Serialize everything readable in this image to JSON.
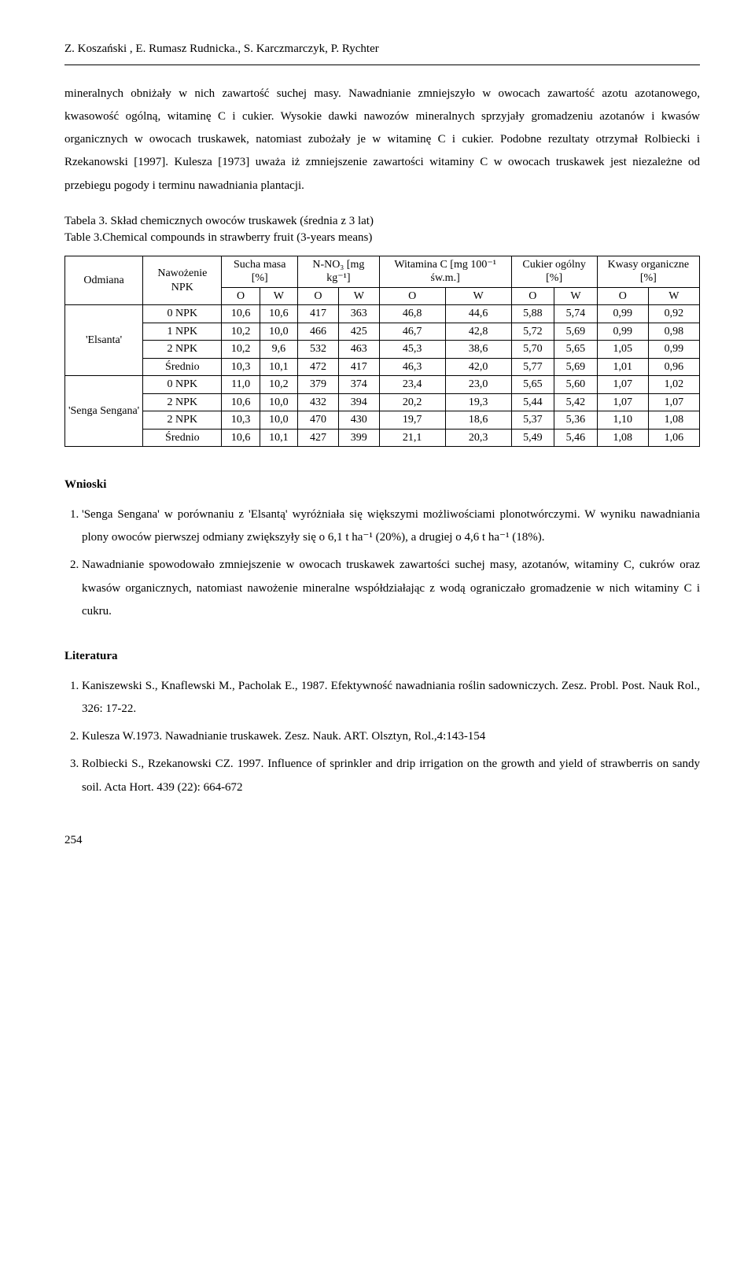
{
  "authors": "Z. Koszański , E. Rumasz Rudnicka., S.  Karczmarczyk, P. Rychter",
  "para1": "mineralnych obniżały w nich  zawartość suchej masy. Nawadnianie zmniejszyło w owocach zawartość azotu azotanowego, kwasowość ogólną, witaminę C i cukier. Wysokie dawki nawozów mineralnych sprzyjały gromadzeniu azotanów i kwasów organicznych w owocach truskawek, natomiast zubożały je  w witaminę C i cukier. Podobne rezultaty otrzymał Rolbiecki i Rzekanowski [1997]. Kulesza [1973] uważa iż zmniejszenie zawartości witaminy C w owocach truskawek jest niezależne od przebiegu pogody i terminu nawadniania plantacji.",
  "table_caption_pl": "Tabela 3. Skład chemicznych  owoców truskawek (średnia z 3 lat)",
  "table_caption_en": "Table 3.Chemical compounds in strawberry fruit (3-years means)",
  "table": {
    "col_headers_top": {
      "odmiana": "Odmiana",
      "nawozenie": "Nawożenie NPK",
      "sucha": "Sucha masa [%]",
      "nno3": "N-NO₃ [mg  kg⁻¹]",
      "witc": "Witamina C [mg 100⁻¹ św.m.]",
      "cukier": "Cukier ogólny [%]",
      "kwasy": "Kwasy organiczne [%]"
    },
    "sub_ow": [
      "O",
      "W",
      "O",
      "W",
      "O",
      "W",
      "O",
      "W",
      "O",
      "W"
    ],
    "groups": [
      {
        "name": "'Elsanta'",
        "rows": [
          {
            "label": "0 NPK",
            "vals": [
              "10,6",
              "10,6",
              "417",
              "363",
              "46,8",
              "44,6",
              "5,88",
              "5,74",
              "0,99",
              "0,92"
            ]
          },
          {
            "label": "1 NPK",
            "vals": [
              "10,2",
              "10,0",
              "466",
              "425",
              "46,7",
              "42,8",
              "5,72",
              "5,69",
              "0,99",
              "0,98"
            ]
          },
          {
            "label": "2 NPK",
            "vals": [
              "10,2",
              "9,6",
              "532",
              "463",
              "45,3",
              "38,6",
              "5,70",
              "5,65",
              "1,05",
              "0,99"
            ]
          },
          {
            "label": "Średnio",
            "vals": [
              "10,3",
              "10,1",
              "472",
              "417",
              "46,3",
              "42,0",
              "5,77",
              "5,69",
              "1,01",
              "0,96"
            ]
          }
        ]
      },
      {
        "name": "'Senga Sengana'",
        "rows": [
          {
            "label": "0 NPK",
            "vals": [
              "11,0",
              "10,2",
              "379",
              "374",
              "23,4",
              "23,0",
              "5,65",
              "5,60",
              "1,07",
              "1,02"
            ]
          },
          {
            "label": "2 NPK",
            "vals": [
              "10,6",
              "10,0",
              "432",
              "394",
              "20,2",
              "19,3",
              "5,44",
              "5,42",
              "1,07",
              "1,07"
            ]
          },
          {
            "label": "2 NPK",
            "vals": [
              "10,3",
              "10,0",
              "470",
              "430",
              "19,7",
              "18,6",
              "5,37",
              "5,36",
              "1,10",
              "1,08"
            ]
          },
          {
            "label": "Średnio",
            "vals": [
              "10,6",
              "10,1",
              "427",
              "399",
              "21,1",
              "20,3",
              "5,49",
              "5,46",
              "1,08",
              "1,06"
            ]
          }
        ]
      }
    ]
  },
  "wnioski_heading": "Wnioski",
  "wnioski": [
    "'Senga Sengana' w porównaniu z 'Elsantą' wyróżniała się większymi możliwościami plonotwórczymi. W wyniku nawadniania plony owoców pierwszej odmiany zwiększyły się o 6,1 t  ha⁻¹ (20%), a drugiej o 4,6 t  ha⁻¹ (18%).",
    "Nawadnianie spowodowało zmniejszenie w owocach truskawek zawartości suchej masy, azotanów, witaminy C, cukrów oraz kwasów organicznych, natomiast nawożenie mineralne współdziałając z wodą ograniczało gromadzenie w nich witaminy C i cukru."
  ],
  "lit_heading": "Literatura",
  "lit": [
    "Kaniszewski S., Knaflewski M., Pacholak E., 1987. Efektywność nawadniania roślin sadowniczych. Zesz. Probl. Post. Nauk Rol., 326: 17-22.",
    "Kulesza W.1973. Nawadnianie truskawek. Zesz. Nauk. ART. Olsztyn, Rol.,4:143-154",
    "Rolbiecki S., Rzekanowski CZ. 1997. Influence of sprinkler and drip irrigation on the growth and yield of strawberris on sandy soil. Acta Hort. 439 (22): 664-672"
  ],
  "page_number": "254"
}
